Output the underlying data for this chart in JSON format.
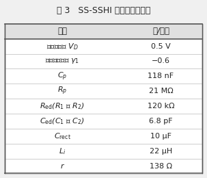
{
  "title": "表 3   SS-SSHI 电路涉及的参数",
  "header": [
    "名称",
    "值/大小"
  ],
  "rows": [
    [
      "二极管压降 $V_D$",
      "0.5 V"
    ],
    [
      "电压翻转系数 $\\gamma_1$",
      "−0.6"
    ],
    [
      "$C_p$",
      "118 nF"
    ],
    [
      "$R_p$",
      "21 MΩ"
    ],
    [
      "$R_{\\mathrm{ed}}$($R_1$ 和 $R_2$)",
      "120 kΩ"
    ],
    [
      "$C_{\\mathrm{ed}}$($C_1$ 和 $C_2$)",
      "6.8 pF"
    ],
    [
      "$C_{\\mathrm{rect}}$",
      "10 μF"
    ],
    [
      "$L_i$",
      "22 μH"
    ],
    [
      "$r$",
      "138 Ω"
    ]
  ],
  "bg_color": "#f0f0f0",
  "header_bg": "#e0e0e0",
  "border_color": "#555555",
  "text_color": "#222222",
  "title_fontsize": 9,
  "header_fontsize": 8.5,
  "row_fontsize": 8.0,
  "fig_width": 3.03,
  "fig_height": 2.6
}
